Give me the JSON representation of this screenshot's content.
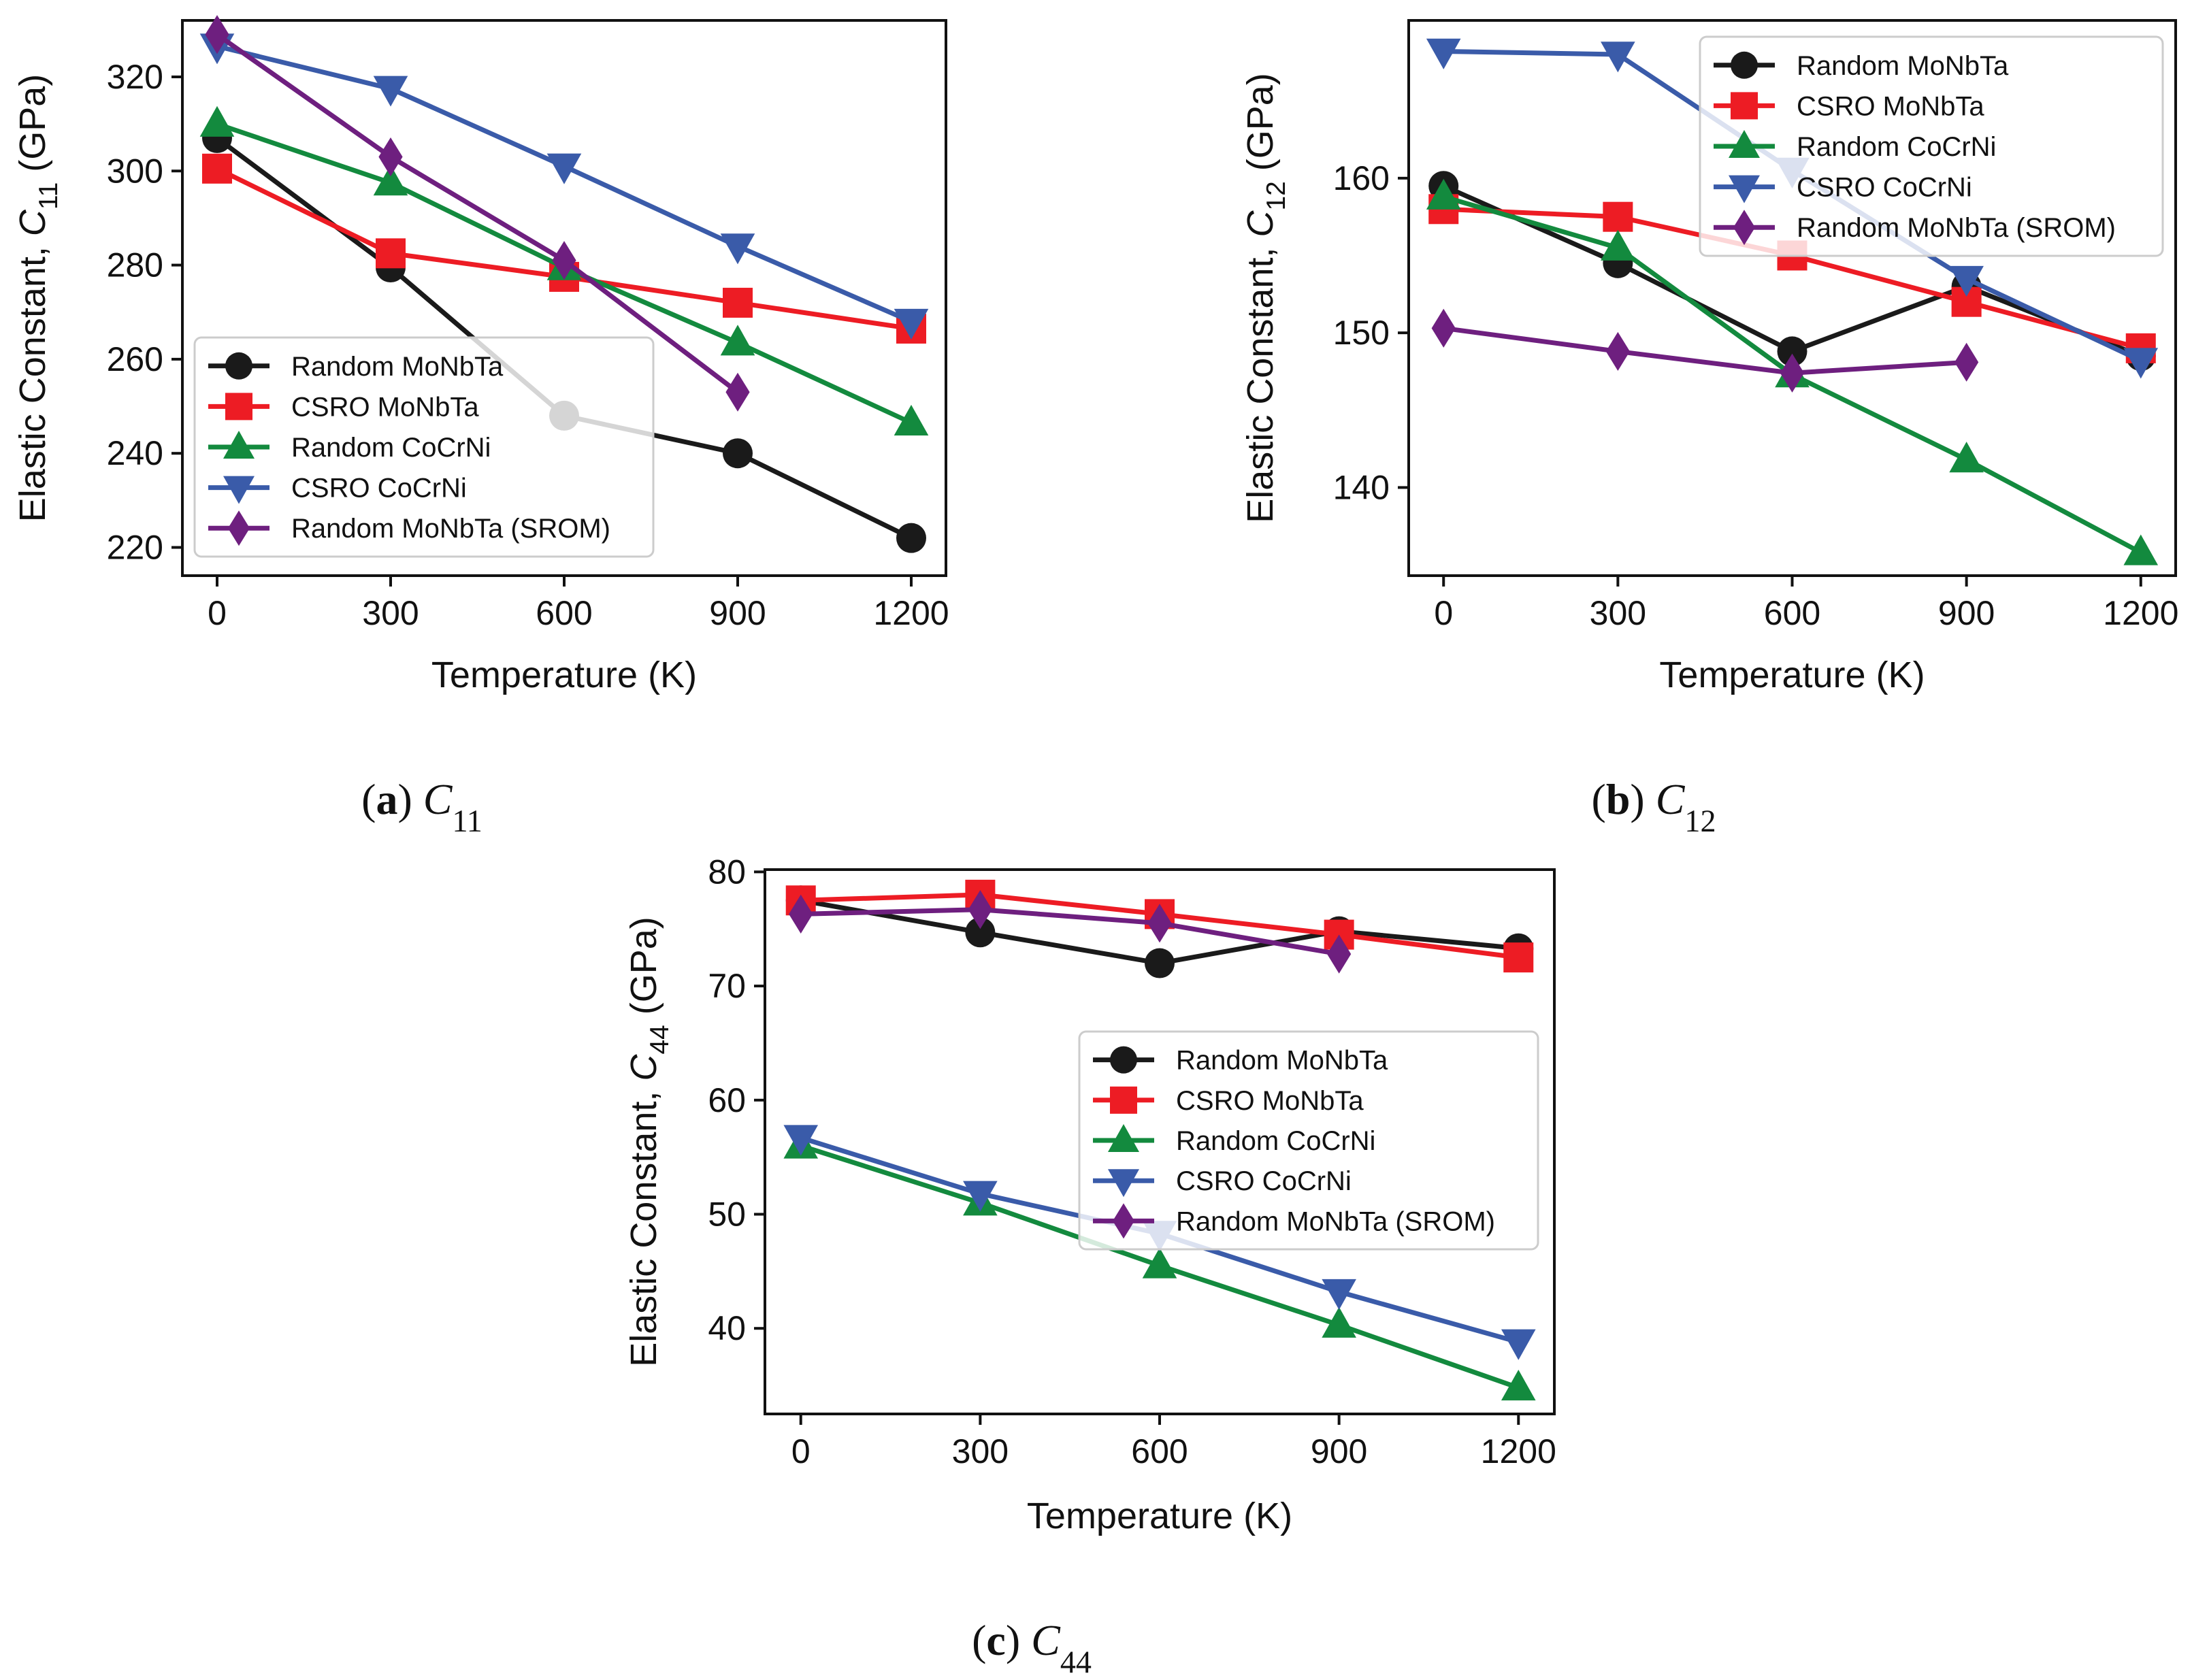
{
  "chart_data": [
    {
      "id": "a",
      "type": "line",
      "caption": {
        "tag": "(a)",
        "symbol": "C",
        "subscript": "11"
      },
      "xlabel": "Temperature (K)",
      "ylabel": {
        "prefix": "Elastic Constant, ",
        "symbol": "C",
        "subscript": "11",
        "suffix": " (GPa)"
      },
      "x": [
        0,
        300,
        600,
        900,
        1200
      ],
      "xlim": [
        -60,
        1260
      ],
      "ylim": [
        214,
        332
      ],
      "xticks": [
        0,
        300,
        600,
        900,
        1200
      ],
      "yticks": [
        220,
        240,
        260,
        280,
        300,
        320
      ],
      "legend_position": "lower-left",
      "series": [
        {
          "name": "Random MoNbTa",
          "color": "#1a1a1a",
          "marker": "circle",
          "values": [
            307,
            279.5,
            248,
            240,
            222
          ]
        },
        {
          "name": "CSRO MoNbTa",
          "color": "#ed1c24",
          "marker": "square",
          "values": [
            300.5,
            282.5,
            277.5,
            272,
            266.5
          ]
        },
        {
          "name": "Random CoCrNi",
          "color": "#138a3e",
          "marker": "triangle-up",
          "values": [
            310,
            297.5,
            279.5,
            263.5,
            246.5
          ]
        },
        {
          "name": "CSRO CoCrNi",
          "color": "#3a5ba9",
          "marker": "triangle-down",
          "values": [
            326.5,
            317.5,
            301,
            284,
            268
          ]
        },
        {
          "name": "Random MoNbTa (SROM)",
          "color": "#6e1f7f",
          "marker": "diamond",
          "values": [
            329,
            303,
            281,
            253,
            null
          ]
        }
      ]
    },
    {
      "id": "b",
      "type": "line",
      "caption": {
        "tag": "(b)",
        "symbol": "C",
        "subscript": "12"
      },
      "xlabel": "Temperature (K)",
      "ylabel": {
        "prefix": "Elastic Constant, ",
        "symbol": "C",
        "subscript": "12",
        "suffix": " (GPa)"
      },
      "x": [
        0,
        300,
        600,
        900,
        1200
      ],
      "xlim": [
        -60,
        1260
      ],
      "ylim": [
        134.3,
        170.2
      ],
      "xticks": [
        0,
        300,
        600,
        900,
        1200
      ],
      "yticks": [
        140,
        150,
        160
      ],
      "legend_position": "upper-right",
      "series": [
        {
          "name": "Random MoNbTa",
          "color": "#1a1a1a",
          "marker": "circle",
          "values": [
            159.5,
            154.5,
            148.8,
            153,
            148.5
          ]
        },
        {
          "name": "CSRO MoNbTa",
          "color": "#ed1c24",
          "marker": "square",
          "values": [
            158,
            157.5,
            155,
            152,
            149
          ]
        },
        {
          "name": "Random CoCrNi",
          "color": "#138a3e",
          "marker": "triangle-up",
          "values": [
            158.8,
            155.5,
            147.3,
            141.8,
            135.8
          ]
        },
        {
          "name": "CSRO CoCrNi",
          "color": "#3a5ba9",
          "marker": "triangle-down",
          "values": [
            168.2,
            168,
            160.5,
            153.5,
            148.2
          ]
        },
        {
          "name": "Random MoNbTa (SROM)",
          "color": "#6e1f7f",
          "marker": "diamond",
          "values": [
            150.3,
            148.8,
            147.4,
            148.1,
            null
          ]
        }
      ]
    },
    {
      "id": "c",
      "type": "line",
      "caption": {
        "tag": "(c)",
        "symbol": "C",
        "subscript": "44"
      },
      "xlabel": "Temperature (K)",
      "ylabel": {
        "prefix": "Elastic Constant, ",
        "symbol": "C",
        "subscript": "44",
        "suffix": " (GPa)"
      },
      "x": [
        0,
        300,
        600,
        900,
        1200
      ],
      "xlim": [
        -60,
        1260
      ],
      "ylim": [
        32.5,
        80.2
      ],
      "xticks": [
        0,
        300,
        600,
        900,
        1200
      ],
      "yticks": [
        40,
        50,
        60,
        70,
        80
      ],
      "legend_position": "center-right",
      "series": [
        {
          "name": "Random MoNbTa",
          "color": "#1a1a1a",
          "marker": "circle",
          "values": [
            77.5,
            74.7,
            72,
            74.8,
            73.3
          ]
        },
        {
          "name": "CSRO MoNbTa",
          "color": "#ed1c24",
          "marker": "square",
          "values": [
            77.5,
            78,
            76.3,
            74.5,
            72.5
          ]
        },
        {
          "name": "Random CoCrNi",
          "color": "#138a3e",
          "marker": "triangle-up",
          "values": [
            56,
            51,
            45.5,
            40.3,
            34.8
          ]
        },
        {
          "name": "CSRO CoCrNi",
          "color": "#3a5ba9",
          "marker": "triangle-down",
          "values": [
            56.7,
            51.8,
            48.3,
            43.2,
            38.8
          ]
        },
        {
          "name": "Random MoNbTa (SROM)",
          "color": "#6e1f7f",
          "marker": "diamond",
          "values": [
            76.3,
            76.7,
            75.5,
            72.8,
            null
          ]
        }
      ]
    }
  ]
}
